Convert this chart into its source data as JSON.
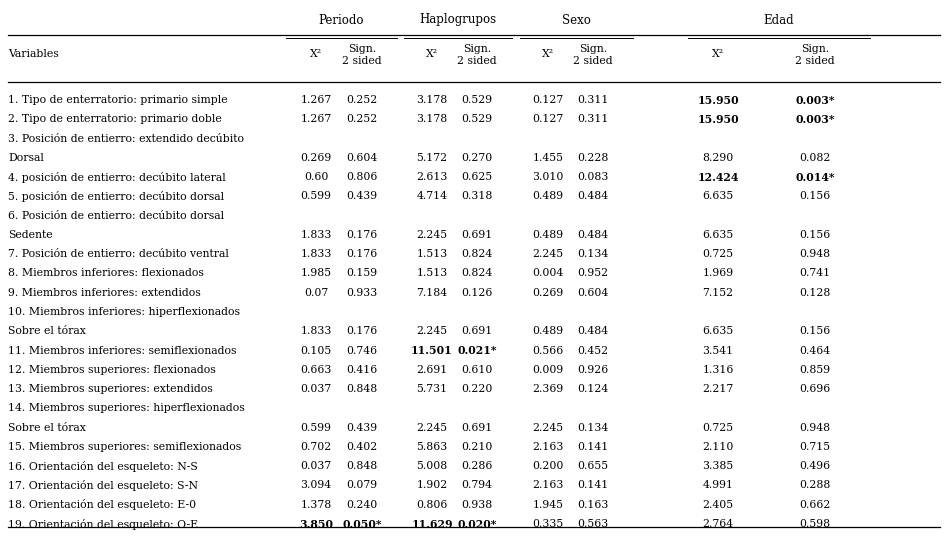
{
  "rows": [
    {
      "label": "1. Tipo de enterratorio: primario simple",
      "values": [
        "1.267",
        "0.252",
        "3.178",
        "0.529",
        "0.127",
        "0.311",
        "15.950",
        "0.003*"
      ],
      "bold": [
        false,
        false,
        false,
        false,
        false,
        false,
        true,
        true
      ]
    },
    {
      "label": "2. Tipo de enterratorio: primario doble",
      "values": [
        "1.267",
        "0.252",
        "3.178",
        "0.529",
        "0.127",
        "0.311",
        "15.950",
        "0.003*"
      ],
      "bold": [
        false,
        false,
        false,
        false,
        false,
        false,
        true,
        true
      ]
    },
    {
      "label": "3. Posición de entierro: extendido decúbito",
      "values": [
        "",
        "",
        "",
        "",
        "",
        "",
        "",
        ""
      ],
      "bold": [
        false,
        false,
        false,
        false,
        false,
        false,
        false,
        false
      ]
    },
    {
      "label": "Dorsal",
      "values": [
        "0.269",
        "0.604",
        "5.172",
        "0.270",
        "1.455",
        "0.228",
        "8.290",
        "0.082"
      ],
      "bold": [
        false,
        false,
        false,
        false,
        false,
        false,
        false,
        false
      ]
    },
    {
      "label": "4. posición de entierro: decúbito lateral",
      "values": [
        "0.60",
        "0.806",
        "2.613",
        "0.625",
        "3.010",
        "0.083",
        "12.424",
        "0.014*"
      ],
      "bold": [
        false,
        false,
        false,
        false,
        false,
        false,
        true,
        true
      ]
    },
    {
      "label": "5. posición de entierro: decúbito dorsal",
      "values": [
        "0.599",
        "0.439",
        "4.714",
        "0.318",
        "0.489",
        "0.484",
        "6.635",
        "0.156"
      ],
      "bold": [
        false,
        false,
        false,
        false,
        false,
        false,
        false,
        false
      ]
    },
    {
      "label": "6. Posición de entierro: decúbito dorsal",
      "values": [
        "",
        "",
        "",
        "",
        "",
        "",
        "",
        ""
      ],
      "bold": [
        false,
        false,
        false,
        false,
        false,
        false,
        false,
        false
      ]
    },
    {
      "label": "Sedente",
      "values": [
        "1.833",
        "0.176",
        "2.245",
        "0.691",
        "0.489",
        "0.484",
        "6.635",
        "0.156"
      ],
      "bold": [
        false,
        false,
        false,
        false,
        false,
        false,
        false,
        false
      ]
    },
    {
      "label": "7. Posición de entierro: decúbito ventral",
      "values": [
        "1.833",
        "0.176",
        "1.513",
        "0.824",
        "2.245",
        "0.134",
        "0.725",
        "0.948"
      ],
      "bold": [
        false,
        false,
        false,
        false,
        false,
        false,
        false,
        false
      ]
    },
    {
      "label": "8. Miembros inferiores: flexionados",
      "values": [
        "1.985",
        "0.159",
        "1.513",
        "0.824",
        "0.004",
        "0.952",
        "1.969",
        "0.741"
      ],
      "bold": [
        false,
        false,
        false,
        false,
        false,
        false,
        false,
        false
      ]
    },
    {
      "label": "9. Miembros inferiores: extendidos",
      "values": [
        "0.07",
        "0.933",
        "7.184",
        "0.126",
        "0.269",
        "0.604",
        "7.152",
        "0.128"
      ],
      "bold": [
        false,
        false,
        false,
        false,
        false,
        false,
        false,
        false
      ]
    },
    {
      "label": "10. Miembros inferiores: hiperflexionados",
      "values": [
        "",
        "",
        "",
        "",
        "",
        "",
        "",
        ""
      ],
      "bold": [
        false,
        false,
        false,
        false,
        false,
        false,
        false,
        false
      ]
    },
    {
      "label": "Sobre el tórax",
      "values": [
        "1.833",
        "0.176",
        "2.245",
        "0.691",
        "0.489",
        "0.484",
        "6.635",
        "0.156"
      ],
      "bold": [
        false,
        false,
        false,
        false,
        false,
        false,
        false,
        false
      ]
    },
    {
      "label": "11. Miembros inferiores: semiflexionados",
      "values": [
        "0.105",
        "0.746",
        "11.501",
        "0.021*",
        "0.566",
        "0.452",
        "3.541",
        "0.464"
      ],
      "bold": [
        false,
        false,
        true,
        true,
        false,
        false,
        false,
        false
      ]
    },
    {
      "label": "12. Miembros superiores: flexionados",
      "values": [
        "0.663",
        "0.416",
        "2.691",
        "0.610",
        "0.009",
        "0.926",
        "1.316",
        "0.859"
      ],
      "bold": [
        false,
        false,
        false,
        false,
        false,
        false,
        false,
        false
      ]
    },
    {
      "label": "13. Miembros superiores: extendidos",
      "values": [
        "0.037",
        "0.848",
        "5.731",
        "0.220",
        "2.369",
        "0.124",
        "2.217",
        "0.696"
      ],
      "bold": [
        false,
        false,
        false,
        false,
        false,
        false,
        false,
        false
      ]
    },
    {
      "label": "14. Miembros superiores: hiperflexionados",
      "values": [
        "",
        "",
        "",
        "",
        "",
        "",
        "",
        ""
      ],
      "bold": [
        false,
        false,
        false,
        false,
        false,
        false,
        false,
        false
      ]
    },
    {
      "label": "Sobre el tórax",
      "values": [
        "0.599",
        "0.439",
        "2.245",
        "0.691",
        "2.245",
        "0.134",
        "0.725",
        "0.948"
      ],
      "bold": [
        false,
        false,
        false,
        false,
        false,
        false,
        false,
        false
      ]
    },
    {
      "label": "15. Miembros superiores: semiflexionados",
      "values": [
        "0.702",
        "0.402",
        "5.863",
        "0.210",
        "2.163",
        "0.141",
        "2.110",
        "0.715"
      ],
      "bold": [
        false,
        false,
        false,
        false,
        false,
        false,
        false,
        false
      ]
    },
    {
      "label": "16. Orientación del esqueleto: N-S",
      "values": [
        "0.037",
        "0.848",
        "5.008",
        "0.286",
        "0.200",
        "0.655",
        "3.385",
        "0.496"
      ],
      "bold": [
        false,
        false,
        false,
        false,
        false,
        false,
        false,
        false
      ]
    },
    {
      "label": "17. Orientación del esqueleto: S-N",
      "values": [
        "3.094",
        "0.079",
        "1.902",
        "0.794",
        "2.163",
        "0.141",
        "4.991",
        "0.288"
      ],
      "bold": [
        false,
        false,
        false,
        false,
        false,
        false,
        false,
        false
      ]
    },
    {
      "label": "18. Orientación del esqueleto: E-0",
      "values": [
        "1.378",
        "0.240",
        "0.806",
        "0.938",
        "1.945",
        "0.163",
        "2.405",
        "0.662"
      ],
      "bold": [
        false,
        false,
        false,
        false,
        false,
        false,
        false,
        false
      ]
    },
    {
      "label": "19. Orientación del esqueleto: O-E",
      "values": [
        "3.850",
        "0.050*",
        "11.629",
        "0.020*",
        "0.335",
        "0.563",
        "2.764",
        "0.598"
      ],
      "bold": [
        true,
        true,
        true,
        true,
        false,
        false,
        false,
        false
      ]
    }
  ],
  "group_headers": [
    "Periodo",
    "Haplogrupos",
    "Sexo",
    "Edad"
  ],
  "col_sub_headers": [
    "X²",
    "Sign.\n2 sided",
    "X²",
    "Sign.\n2 sided",
    "X²",
    "Sign.\n2 sided",
    "X²",
    "Sign.\n2 sided"
  ],
  "bg_color": "#ffffff",
  "text_color": "#000000"
}
